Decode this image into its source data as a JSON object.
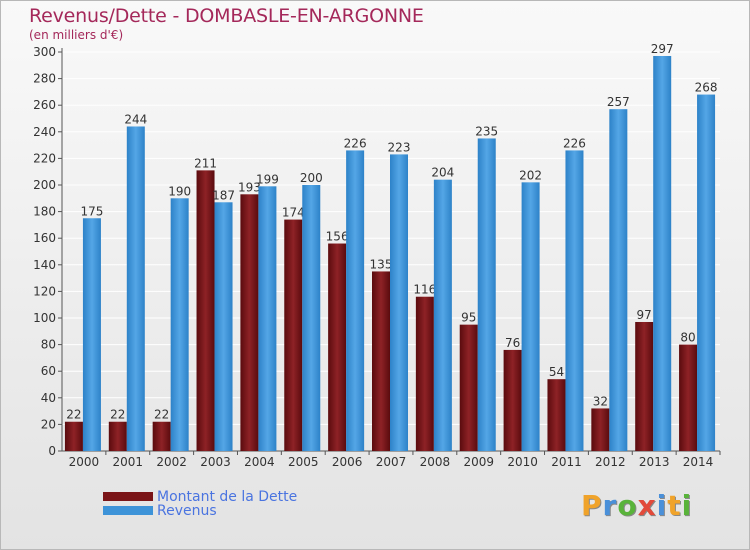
{
  "title": "Revenus/Dette - DOMBASLE-EN-ARGONNE",
  "subtitle": "(en milliers d'€)",
  "colors": {
    "dette": "#7a1417",
    "revenus": "#3d93d8",
    "grid": "#ffffff",
    "text": "#333333",
    "title": "#a4285a"
  },
  "legend": [
    {
      "label": "Montant de la Dette",
      "color": "#7a1417"
    },
    {
      "label": "Revenus",
      "color": "#3d93d8"
    }
  ],
  "logo": {
    "text": "Proxiti",
    "letter_colors": [
      "#f0a32a",
      "#4a90d9",
      "#59b33a",
      "#e24a3a",
      "#4a90d9",
      "#f0a32a",
      "#59b33a"
    ]
  },
  "chart_data": {
    "type": "bar",
    "categories": [
      "2000",
      "2001",
      "2002",
      "2003",
      "2004",
      "2005",
      "2006",
      "2007",
      "2008",
      "2009",
      "2010",
      "2011",
      "2012",
      "2013",
      "2014"
    ],
    "series": [
      {
        "name": "Montant de la Dette",
        "values": [
          22,
          22,
          22,
          211,
          193,
          174,
          156,
          135,
          116,
          95,
          76,
          54,
          32,
          97,
          80
        ]
      },
      {
        "name": "Revenus",
        "values": [
          175,
          244,
          190,
          187,
          199,
          200,
          226,
          223,
          204,
          235,
          202,
          226,
          257,
          297,
          268
        ]
      }
    ],
    "ylim": [
      0,
      300
    ],
    "yticks": [
      0,
      20,
      40,
      60,
      80,
      100,
      120,
      140,
      160,
      180,
      200,
      220,
      240,
      260,
      280,
      300
    ],
    "grid": true,
    "legend_position": "bottom-left"
  }
}
